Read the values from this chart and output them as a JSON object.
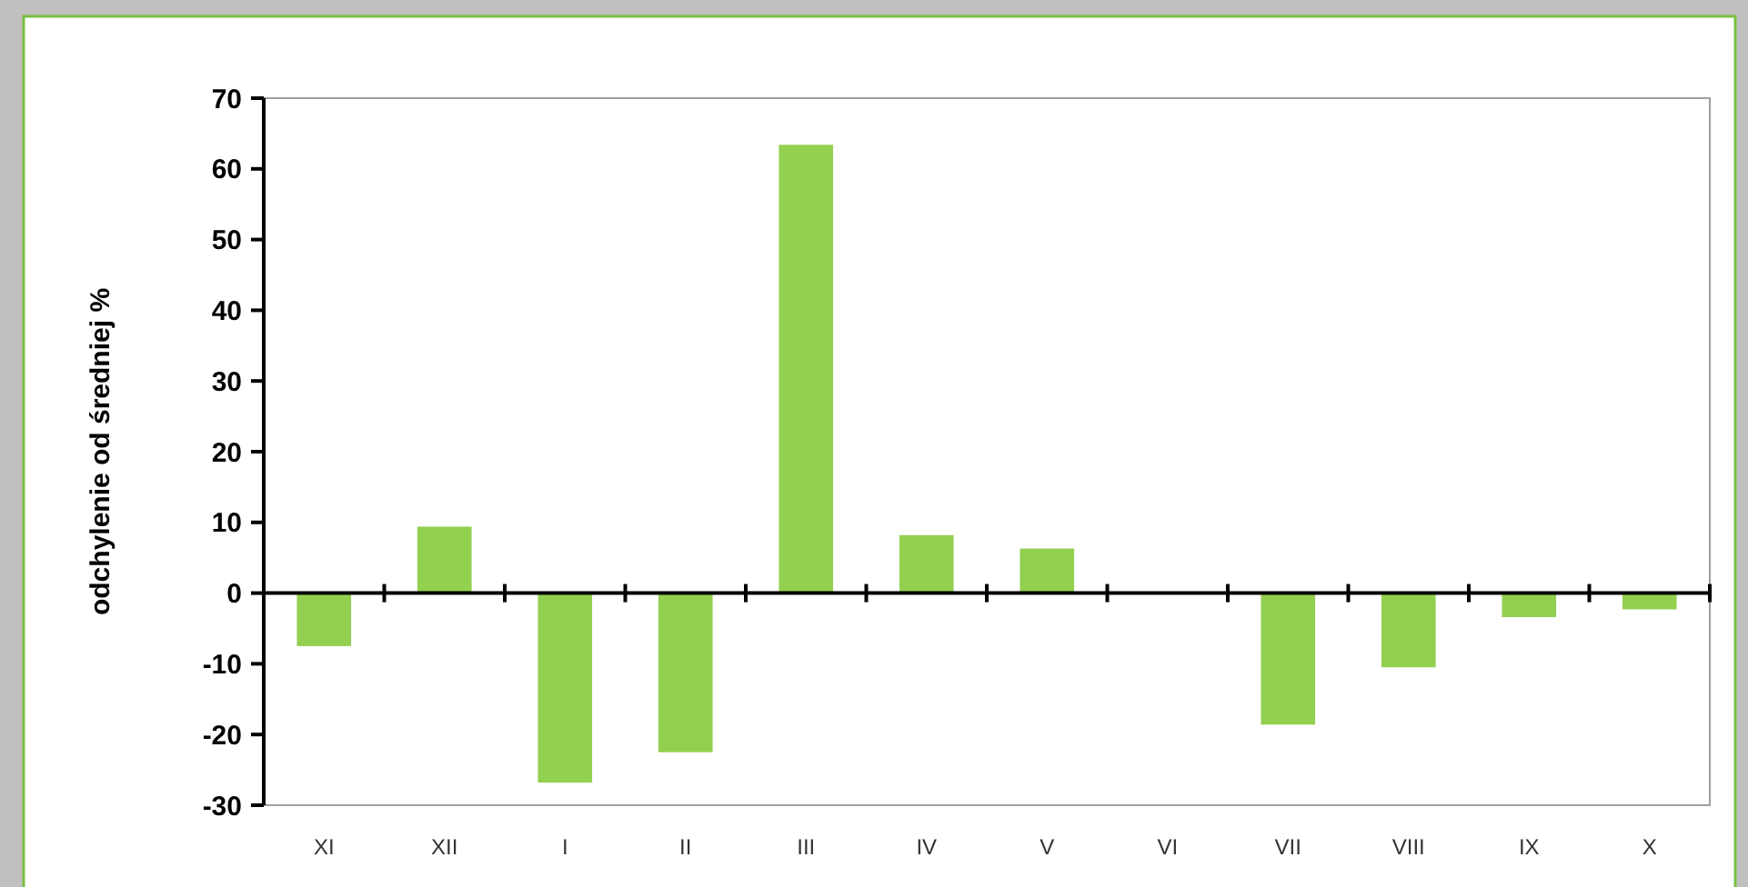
{
  "chart_data": {
    "type": "bar",
    "ylabel": "odchylenie od średniej %",
    "categories": [
      "XI",
      "XII",
      "I",
      "II",
      "III",
      "IV",
      "V",
      "VI",
      "VII",
      "VIII",
      "IX",
      "X"
    ],
    "values": [
      -7.5,
      9.4,
      -26.8,
      -22.5,
      63.4,
      8.2,
      6.3,
      null,
      -18.6,
      -10.5,
      -3.4,
      -2.3
    ],
    "color": "#92d050",
    "ylim": [
      -30,
      70
    ],
    "yticks": [
      -30,
      -20,
      -10,
      0,
      10,
      20,
      30,
      40,
      50,
      60,
      70
    ]
  }
}
